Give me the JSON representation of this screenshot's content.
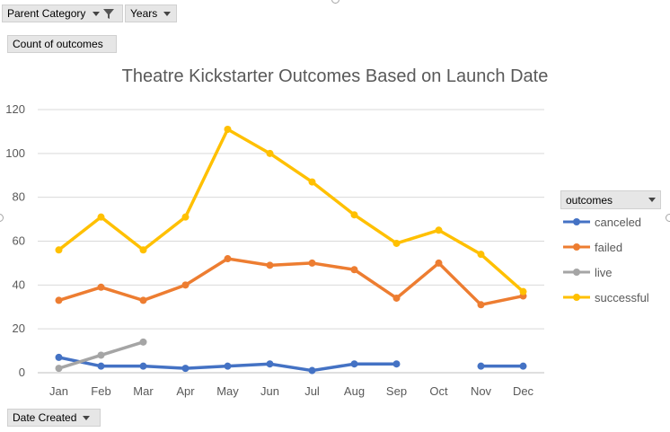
{
  "filters": {
    "parent_category_label": "Parent Category",
    "years_label": "Years",
    "values_label": "Count of outcomes",
    "axis_field_label": "Date Created"
  },
  "legend": {
    "title": "outcomes"
  },
  "chart_data": {
    "type": "line",
    "title": "Theatre Kickstarter Outcomes Based on Launch Date",
    "xlabel": "",
    "ylabel": "",
    "ylim": [
      0,
      120
    ],
    "yticks": [
      0,
      20,
      40,
      60,
      80,
      100,
      120
    ],
    "grid": true,
    "legend_position": "right",
    "categories": [
      "Jan",
      "Feb",
      "Mar",
      "Apr",
      "May",
      "Jun",
      "Jul",
      "Aug",
      "Sep",
      "Oct",
      "Nov",
      "Dec"
    ],
    "series": [
      {
        "name": "canceled",
        "color": "#4472c4",
        "values": [
          7,
          3,
          3,
          2,
          3,
          4,
          1,
          4,
          4,
          null,
          3,
          3
        ]
      },
      {
        "name": "failed",
        "color": "#ed7d31",
        "values": [
          33,
          39,
          33,
          40,
          52,
          49,
          50,
          47,
          34,
          50,
          31,
          35
        ]
      },
      {
        "name": "live",
        "color": "#a5a5a5",
        "values": [
          2,
          8,
          14,
          null,
          null,
          null,
          null,
          null,
          null,
          null,
          null,
          null
        ]
      },
      {
        "name": "successful",
        "color": "#ffc000",
        "values": [
          56,
          71,
          56,
          71,
          111,
          100,
          87,
          72,
          59,
          65,
          54,
          37
        ]
      }
    ]
  }
}
